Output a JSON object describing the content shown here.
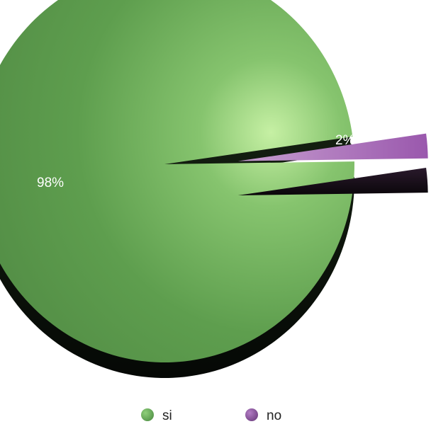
{
  "chart_data": {
    "type": "pie",
    "style": "3d",
    "slices": [
      {
        "label": "si",
        "value": 98,
        "value_label": "98%",
        "color": "#5a9e50"
      },
      {
        "label": "no",
        "value": 2,
        "value_label": "2%",
        "color": "#b070c0"
      }
    ],
    "exploded": "no",
    "legend_position": "bottom"
  }
}
